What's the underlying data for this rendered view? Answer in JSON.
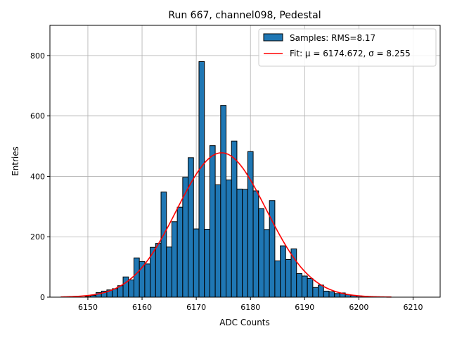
{
  "chart_data": {
    "type": "bar",
    "title": "Run 667, channel098, Pedestal",
    "xlabel": "ADC Counts",
    "ylabel": "Entries",
    "xlim": [
      6143,
      6215
    ],
    "ylim": [
      0,
      900
    ],
    "xticks": [
      6150,
      6160,
      6170,
      6180,
      6190,
      6200,
      6210
    ],
    "yticks": [
      0,
      200,
      400,
      600,
      800
    ],
    "grid": true,
    "legend_position": "top-right",
    "bin_width": 1,
    "series": [
      {
        "name": "Samples: RMS=8.17",
        "color": "#1f77b4",
        "edge_color": "#000000",
        "x": [
          6150,
          6151,
          6152,
          6153,
          6154,
          6155,
          6156,
          6157,
          6158,
          6159,
          6160,
          6161,
          6162,
          6163,
          6164,
          6165,
          6166,
          6167,
          6168,
          6169,
          6170,
          6171,
          6172,
          6173,
          6174,
          6175,
          6176,
          6177,
          6178,
          6179,
          6180,
          6181,
          6182,
          6183,
          6184,
          6185,
          6186,
          6187,
          6188,
          6189,
          6190,
          6191,
          6192,
          6193,
          6194,
          6195,
          6196,
          6197,
          6198,
          6199,
          6200,
          6201
        ],
        "values": [
          2,
          6,
          15,
          20,
          24,
          28,
          38,
          67,
          57,
          130,
          118,
          110,
          165,
          178,
          348,
          166,
          250,
          298,
          397,
          462,
          226,
          780,
          225,
          502,
          372,
          635,
          388,
          517,
          358,
          357,
          482,
          352,
          293,
          224,
          320,
          120,
          170,
          125,
          160,
          78,
          70,
          62,
          32,
          40,
          20,
          18,
          12,
          14,
          8,
          6,
          4,
          2
        ]
      },
      {
        "name": "Fit: μ = 6174.672, σ = 8.255",
        "type": "line",
        "color": "#ff0000",
        "mu": 6174.672,
        "sigma": 8.255,
        "amplitude": 478,
        "x_range": [
          6145,
          6206
        ]
      }
    ]
  }
}
